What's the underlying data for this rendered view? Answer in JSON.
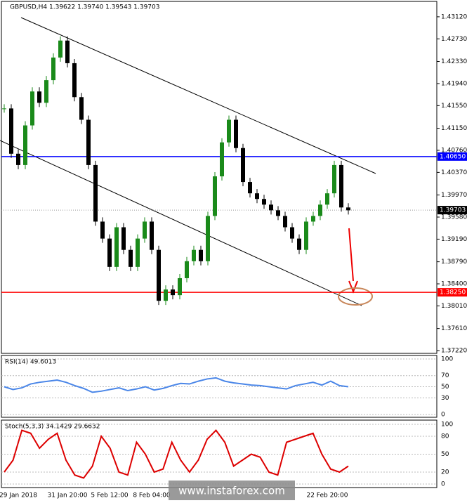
{
  "chart_data": {
    "type": "candlestick",
    "title": "GBPUSD,H4  1.39622 1.39740 1.39543 1.39703",
    "values": [
      1.415,
      1.407,
      1.405,
      1.412,
      1.418,
      1.416,
      1.42,
      1.424,
      1.427,
      1.423,
      1.417,
      1.413,
      1.405,
      1.395,
      1.392,
      1.387,
      1.394,
      1.39,
      1.387,
      1.392,
      1.395,
      1.39,
      1.381,
      1.383,
      1.382,
      1.385,
      1.388,
      1.39,
      1.388,
      1.396,
      1.403,
      1.409,
      1.413,
      1.408,
      1.402,
      1.4,
      1.399,
      1.398,
      1.397,
      1.396,
      1.394,
      1.392,
      1.39,
      1.395,
      1.396,
      1.398,
      1.4,
      1.405,
      1.3975,
      1.397
    ],
    "up_color": "#1a8a1a",
    "down_color": "#000000",
    "ylim": [
      1.43392,
      1.37171
    ],
    "yticks": [
      {
        "value": 1.4312,
        "label": "1.43120"
      },
      {
        "value": 1.4273,
        "label": "1.42730"
      },
      {
        "value": 1.4233,
        "label": "1.42330"
      },
      {
        "value": 1.4194,
        "label": "1.41940"
      },
      {
        "value": 1.4155,
        "label": "1.41550"
      },
      {
        "value": 1.4115,
        "label": "1.41150"
      },
      {
        "value": 1.4076,
        "label": "1.40760"
      },
      {
        "value": 1.4037,
        "label": "1.40370"
      },
      {
        "value": 1.3997,
        "label": "1.39970"
      },
      {
        "value": 1.3958,
        "label": "1.39580"
      },
      {
        "value": 1.3919,
        "label": "1.39190"
      },
      {
        "value": 1.3879,
        "label": "1.38790"
      },
      {
        "value": 1.384,
        "label": "1.38400"
      },
      {
        "value": 1.3801,
        "label": "1.38010"
      },
      {
        "value": 1.3761,
        "label": "1.37610"
      },
      {
        "value": 1.3722,
        "label": "1.37220"
      }
    ],
    "levels": [
      {
        "value": 1.4065,
        "label": "1.40650",
        "color": "#0000ff"
      },
      {
        "value": 1.3825,
        "label": "1.38250",
        "color": "#ff0000"
      }
    ],
    "current": {
      "value": 1.39703,
      "label": "1.39703"
    },
    "xlabels": [
      {
        "label": "29 Jan 2018",
        "index": 2
      },
      {
        "label": "31 Jan 20:00",
        "index": 9
      },
      {
        "label": "5 Feb 12:00",
        "index": 15
      },
      {
        "label": "8 Feb 04:00",
        "index": 21
      },
      {
        "label": "22 Feb 20:00",
        "index": 46
      }
    ],
    "rsi": {
      "label": "RSI(14) 49.6013",
      "values": [
        50,
        45,
        48,
        55,
        58,
        60,
        62,
        58,
        52,
        47,
        40,
        42,
        45,
        48,
        43,
        46,
        50,
        44,
        47,
        52,
        56,
        55,
        60,
        64,
        66,
        60,
        57,
        55,
        53,
        52,
        50,
        48,
        46,
        52,
        55,
        58,
        53,
        60,
        52,
        50
      ],
      "ylim": [
        0,
        100
      ],
      "yticks": [
        0,
        30,
        50,
        70,
        100
      ],
      "color": "#4a86e8"
    },
    "stoch": {
      "label": "Stoch(5,3,3) 34.1429 29.6632",
      "values": [
        20,
        40,
        90,
        85,
        60,
        75,
        85,
        40,
        15,
        10,
        30,
        80,
        60,
        20,
        15,
        70,
        50,
        20,
        25,
        70,
        40,
        20,
        40,
        75,
        90,
        70,
        30,
        40,
        50,
        45,
        20,
        15,
        70,
        75,
        80,
        85,
        50,
        25,
        20,
        30
      ],
      "color": "#dd0000",
      "ylim": [
        0,
        100
      ],
      "yticks": [
        0,
        20,
        50,
        80,
        100
      ]
    },
    "watermark": "www.instaforex.com"
  }
}
